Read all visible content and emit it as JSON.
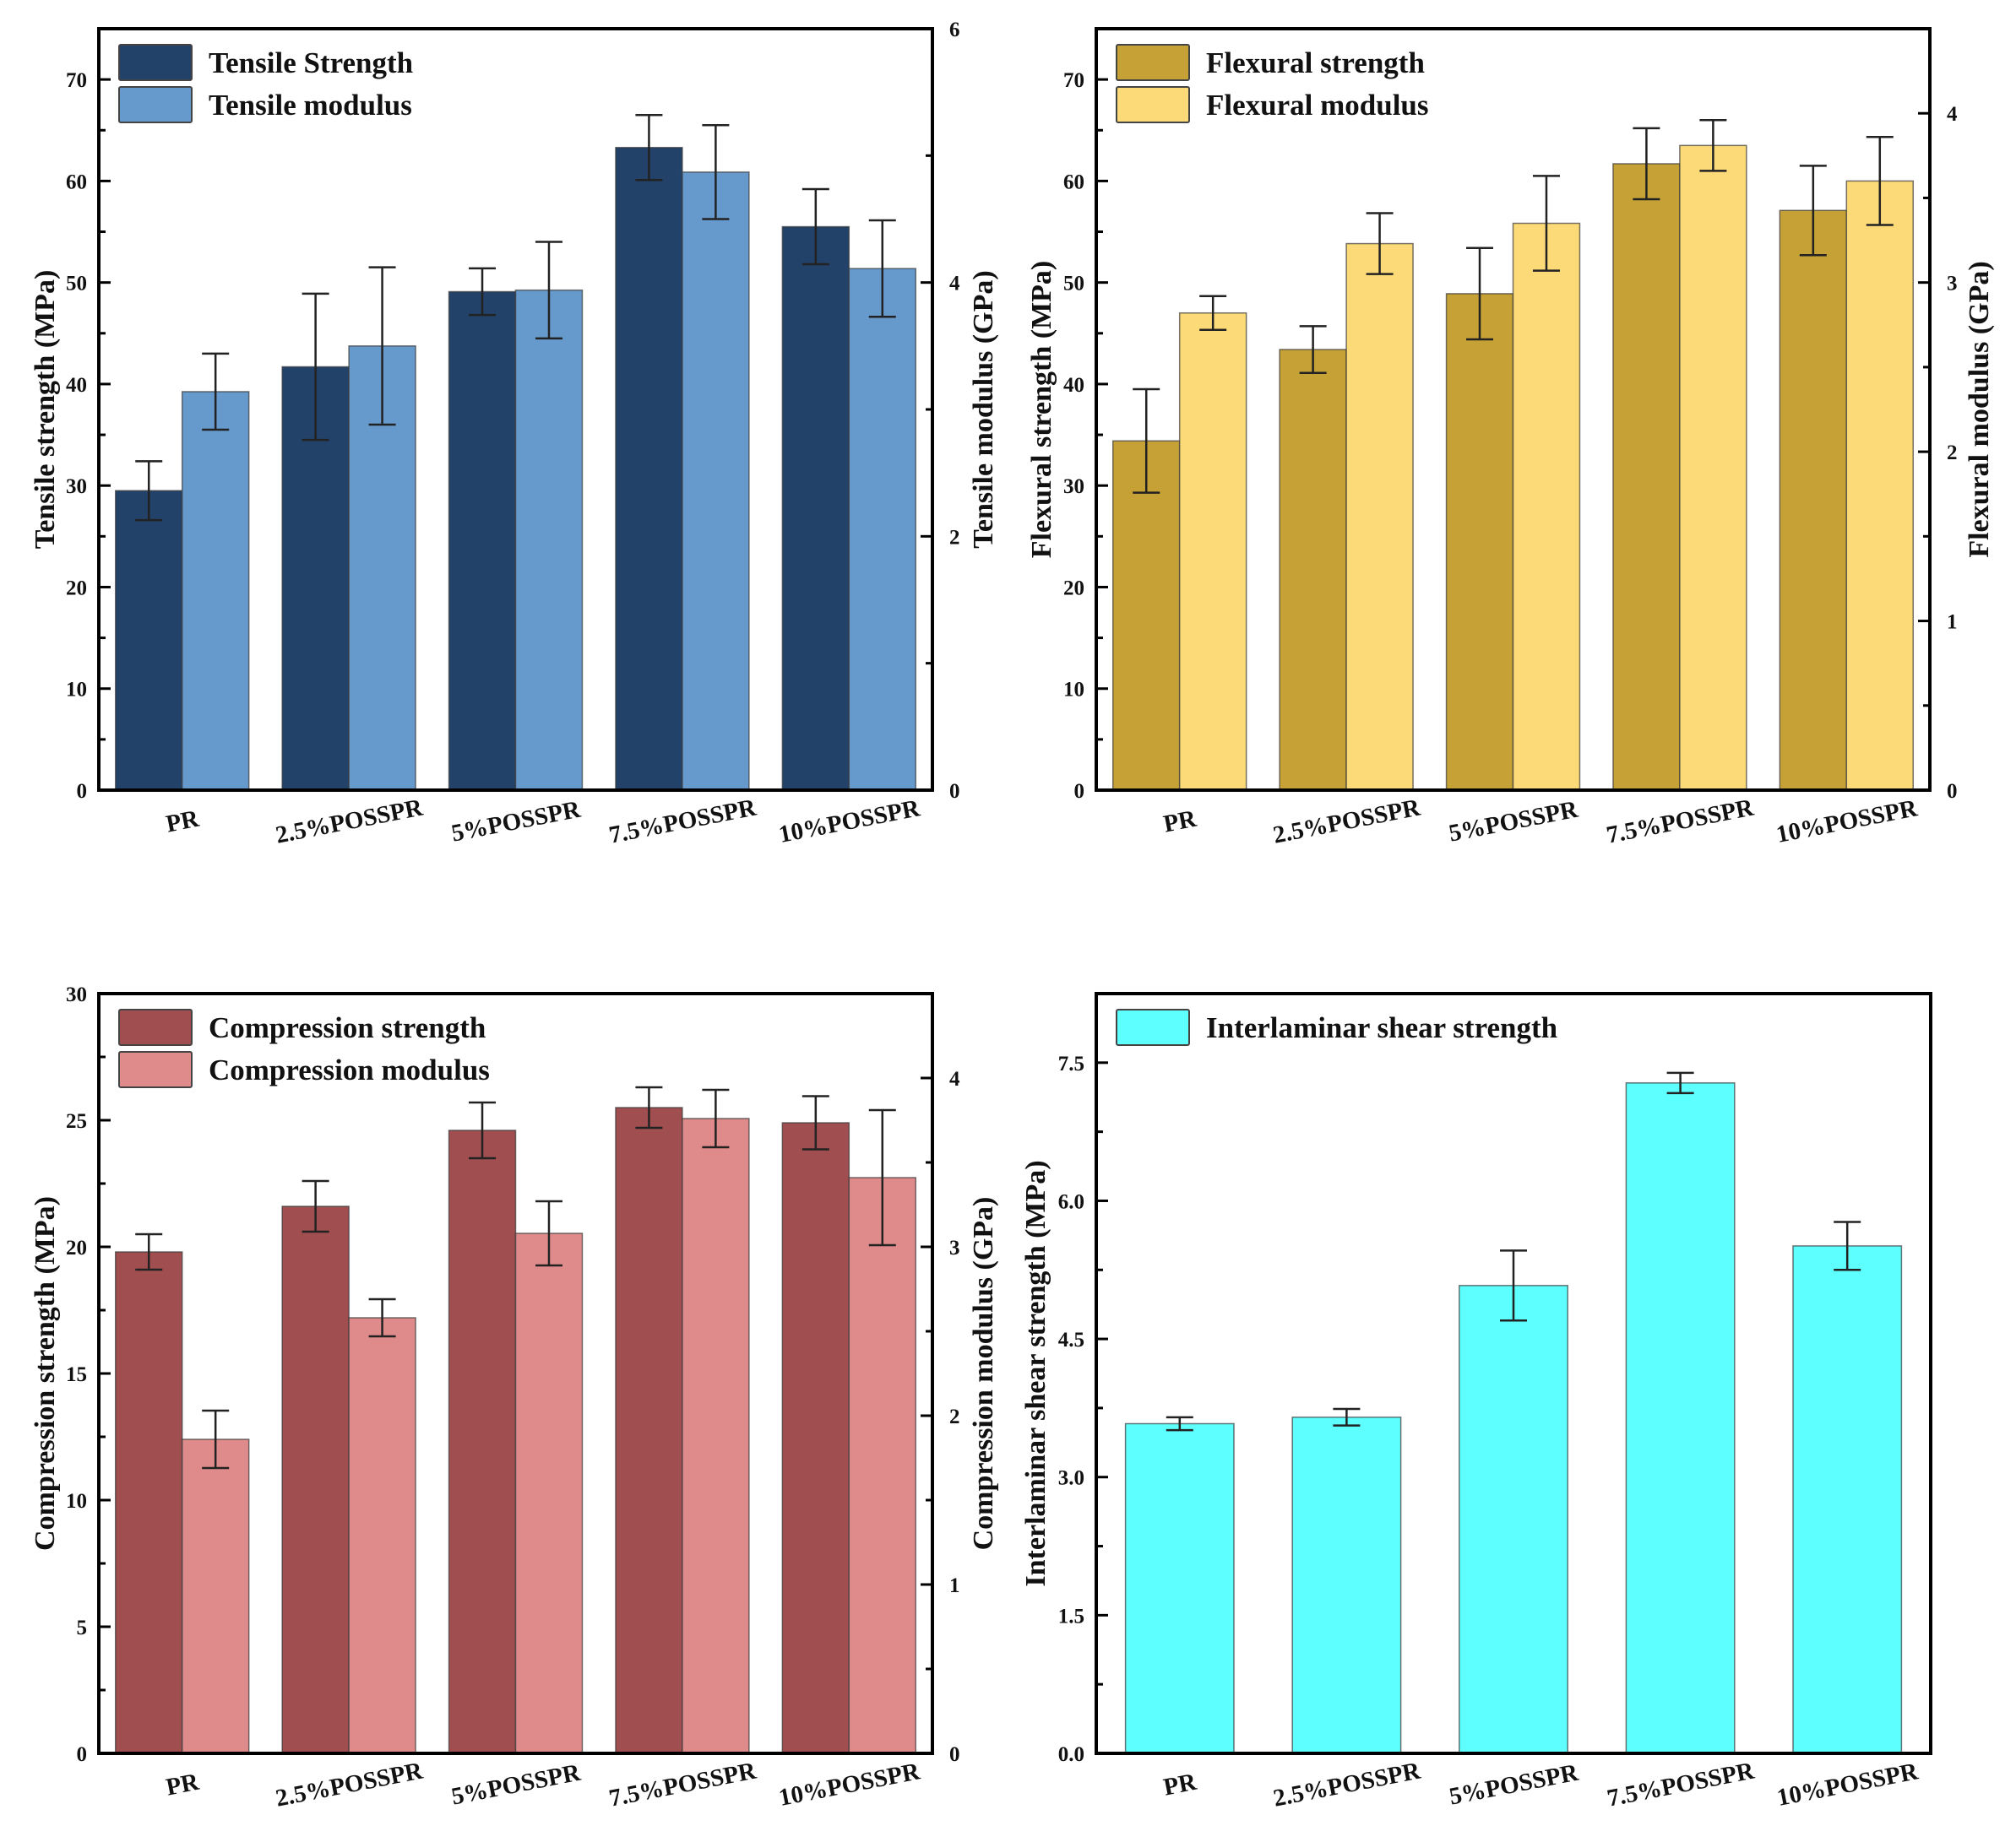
{
  "chart_data": [
    {
      "type": "bar",
      "panel": "top-left",
      "title": "",
      "categories": [
        "PR",
        "2.5%POSSPR",
        "5%POSSPR",
        "7.5%POSSPR",
        "10%POSSPR"
      ],
      "xlabel": "",
      "ylabel": "Tensile strength (MPa)",
      "ylabel_right": "Tensile modulus (GPa)",
      "ylim": [
        0,
        75
      ],
      "ylim_right": [
        0,
        6
      ],
      "yticks": [
        0,
        10,
        20,
        30,
        40,
        50,
        60,
        70
      ],
      "yticks_right": [
        0,
        2,
        4,
        6
      ],
      "legend_position": "top-left",
      "series": [
        {
          "name": "Tensile Strength",
          "axis": "left",
          "color": "#23426A",
          "values": [
            29.5,
            41.7,
            49.1,
            63.3,
            55.5
          ],
          "errors": [
            2.9,
            7.2,
            2.3,
            3.2,
            3.7
          ]
        },
        {
          "name": "Tensile modulus",
          "axis": "right",
          "color": "#6699CC",
          "values": [
            3.14,
            3.5,
            3.94,
            4.87,
            4.11
          ],
          "errors": [
            0.3,
            0.62,
            0.38,
            0.37,
            0.38
          ]
        }
      ]
    },
    {
      "type": "bar",
      "panel": "top-right",
      "title": "",
      "categories": [
        "PR",
        "2.5%POSSPR",
        "5%POSSPR",
        "7.5%POSSPR",
        "10%POSSPR"
      ],
      "xlabel": "",
      "ylabel": "Flexural strength (MPa)",
      "ylabel_right": "Flexural modulus (GPa)",
      "ylim": [
        0,
        75
      ],
      "ylim_right": [
        0,
        4.5
      ],
      "yticks": [
        0,
        10,
        20,
        30,
        40,
        50,
        60,
        70
      ],
      "yticks_right": [
        0,
        1,
        2,
        3,
        4
      ],
      "legend_position": "top-left",
      "series": [
        {
          "name": "Flexural strength",
          "axis": "left",
          "color": "#C6A136",
          "values": [
            34.4,
            43.4,
            48.9,
            61.7,
            57.1
          ],
          "errors": [
            5.1,
            2.3,
            4.5,
            3.5,
            4.4
          ]
        },
        {
          "name": "Flexural modulus",
          "axis": "right",
          "color": "#FDDA78",
          "values": [
            2.82,
            3.23,
            3.35,
            3.81,
            3.6
          ],
          "errors": [
            0.1,
            0.18,
            0.28,
            0.15,
            0.26
          ]
        }
      ]
    },
    {
      "type": "bar",
      "panel": "bottom-left",
      "title": "",
      "categories": [
        "PR",
        "2.5%POSSPR",
        "5%POSSPR",
        "7.5%POSSPR",
        "10%POSSPR"
      ],
      "xlabel": "",
      "ylabel": "Compression strength (MPa)",
      "ylabel_right": "Compression modulus (GPa)",
      "ylim": [
        0,
        30
      ],
      "ylim_right": [
        0,
        4.5
      ],
      "yticks": [
        0,
        5,
        10,
        15,
        20,
        25,
        30
      ],
      "yticks_right": [
        0,
        1,
        2,
        3,
        4
      ],
      "legend_position": "top-left",
      "series": [
        {
          "name": "Compression strength",
          "axis": "left",
          "color": "#A04E4F",
          "values": [
            19.8,
            21.6,
            24.6,
            25.5,
            24.9
          ],
          "errors": [
            0.7,
            1.0,
            1.1,
            0.8,
            1.05
          ]
        },
        {
          "name": "Compression modulus",
          "axis": "right",
          "color": "#E08B8B",
          "values": [
            1.86,
            2.58,
            3.08,
            3.76,
            3.41
          ],
          "errors": [
            0.17,
            0.11,
            0.19,
            0.17,
            0.4
          ]
        }
      ]
    },
    {
      "type": "bar",
      "panel": "bottom-right",
      "title": "",
      "categories": [
        "PR",
        "2.5%POSSPR",
        "5%POSSPR",
        "7.5%POSSPR",
        "10%POSSPR"
      ],
      "xlabel": "",
      "ylabel": "Interlaminar shear strength (MPa)",
      "ylim": [
        0,
        8.25
      ],
      "yticks": [
        "0.0",
        "1.5",
        "3.0",
        "4.5",
        "6.0",
        "7.5"
      ],
      "legend_position": "top-left",
      "series": [
        {
          "name": "Interlaminar shear strength",
          "axis": "left",
          "color": "#5EFFFF",
          "values": [
            3.58,
            3.65,
            5.08,
            7.28,
            5.51
          ],
          "errors": [
            0.07,
            0.09,
            0.38,
            0.11,
            0.26
          ]
        }
      ]
    }
  ]
}
